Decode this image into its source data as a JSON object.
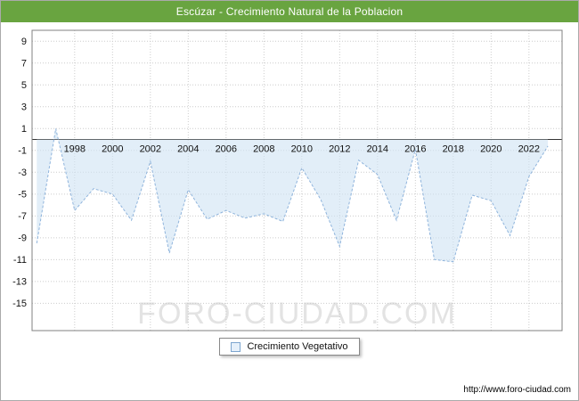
{
  "header": {
    "title": "Escúzar - Crecimiento Natural de la Poblacion",
    "bar_color": "#69A440"
  },
  "watermark": "FORO-CIUDAD.COM",
  "legend": {
    "label": "Crecimiento Vegetativo",
    "marker_color": "#7EA6CF"
  },
  "footer": {
    "url": "http://www.foro-ciudad.com"
  },
  "chart_data": {
    "type": "area",
    "title": "Escúzar - Crecimiento Natural de la Poblacion",
    "xlabel": "",
    "ylabel": "",
    "baseline": 0,
    "grid": true,
    "legend_position": "bottom",
    "series": [
      {
        "name": "Crecimiento Vegetativo",
        "x": [
          1996,
          1997,
          1998,
          1999,
          2000,
          2001,
          2002,
          2003,
          2004,
          2005,
          2006,
          2007,
          2008,
          2009,
          2010,
          2011,
          2012,
          2013,
          2014,
          2015,
          2016,
          2017,
          2018,
          2019,
          2020,
          2021,
          2022,
          2023
        ],
        "values": [
          -9.5,
          1,
          -6.5,
          -4.5,
          -5,
          -7.4,
          -2,
          -10.4,
          -4.6,
          -7.3,
          -6.5,
          -7.2,
          -6.8,
          -7.5,
          -2.6,
          -5.5,
          -9.8,
          -1.9,
          -3.2,
          -7.4,
          -0.9,
          -11,
          -11.2,
          -5.1,
          -5.6,
          -8.8,
          -3.4,
          -0.6
        ]
      }
    ],
    "xticks": [
      1998,
      2000,
      2002,
      2004,
      2006,
      2008,
      2010,
      2012,
      2014,
      2016,
      2018,
      2020,
      2022
    ],
    "yticks": [
      9,
      7,
      5,
      3,
      1,
      -1,
      -3,
      -5,
      -7,
      -9,
      -11,
      -13,
      -15
    ],
    "xlim": [
      1995.75,
      2023.75
    ],
    "ylim": [
      -17.5,
      10
    ],
    "colors": {
      "line": "#8FB4DC",
      "fill": "#CFE2F3",
      "grid": "#CCCCCC",
      "axis": "#333333",
      "border": "#808080",
      "watermark": "#E3E3E3",
      "tick_text": "#111111"
    }
  }
}
